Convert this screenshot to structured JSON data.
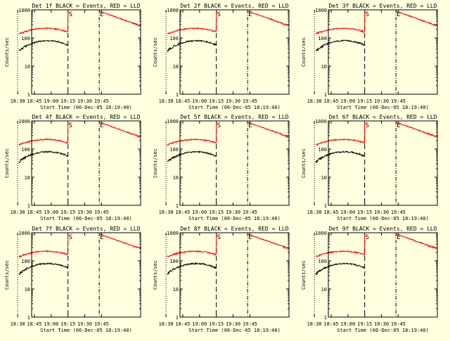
{
  "chart_data": {
    "type": "line",
    "x_tick_labels": [
      "18:30",
      "18:45",
      "19:00",
      "19:15",
      "19:30",
      "19:45"
    ],
    "y_tick_labels": [
      "1000",
      "100",
      "10",
      "1"
    ],
    "ylim": [
      1,
      1000
    ],
    "y_scale": "log",
    "ylabel": "Counts/sec",
    "xlabel": "Start Time (06-Dec-05 18:19:40)",
    "grid": false,
    "series_colors": {
      "black": "#000000",
      "red": "#ff0000"
    },
    "markers": [
      "S",
      "E"
    ],
    "panels": [
      {
        "title": "Det 1f BLACK = Events, RED = LLD",
        "ylabel": "Counts/sec",
        "xlabel": "Start Time (06-Dec-05 18:19:40)"
      },
      {
        "title": "Det 2f BLACK = Events, RED = LLD",
        "ylabel": "Counts/sec",
        "xlabel": "Start Time (06-Dec-05 18:19:40)"
      },
      {
        "title": "Det 3f BLACK = Events, RED = LLD",
        "ylabel": "Counts/sec",
        "xlabel": "Start Time (06-Dec-05 18:19:40)"
      },
      {
        "title": "Det 4f BLACK = Events, RED = LLD",
        "ylabel": "Counts/sec",
        "xlabel": "Start Time (06-Dec-05 18:19:40)"
      },
      {
        "title": "Det 5f BLACK = Events, RED = LLD",
        "ylabel": "Counts/sec",
        "xlabel": "Start Time (06-Dec-05 18:19:40)"
      },
      {
        "title": "Det 6f BLACK = Events, RED = LLD",
        "ylabel": "Counts/sec",
        "xlabel": "Start Time (06-Dec-05 18:19:40)"
      },
      {
        "title": "Det 7f BLACK = Events, RED = LLD",
        "ylabel": "Counts/sec",
        "xlabel": "Start Time (06-Dec-05 18:19:40)"
      },
      {
        "title": "Det 8f BLACK = Events, RED = LLD",
        "ylabel": "Counts/sec",
        "xlabel": "Start Time (06-Dec-05 18:19:40)"
      },
      {
        "title": "Det 9f BLACK = Events, RED = LLD",
        "ylabel": "Counts/sec",
        "xlabel": "Start Time (06-Dec-05 18:19:40)"
      }
    ]
  }
}
